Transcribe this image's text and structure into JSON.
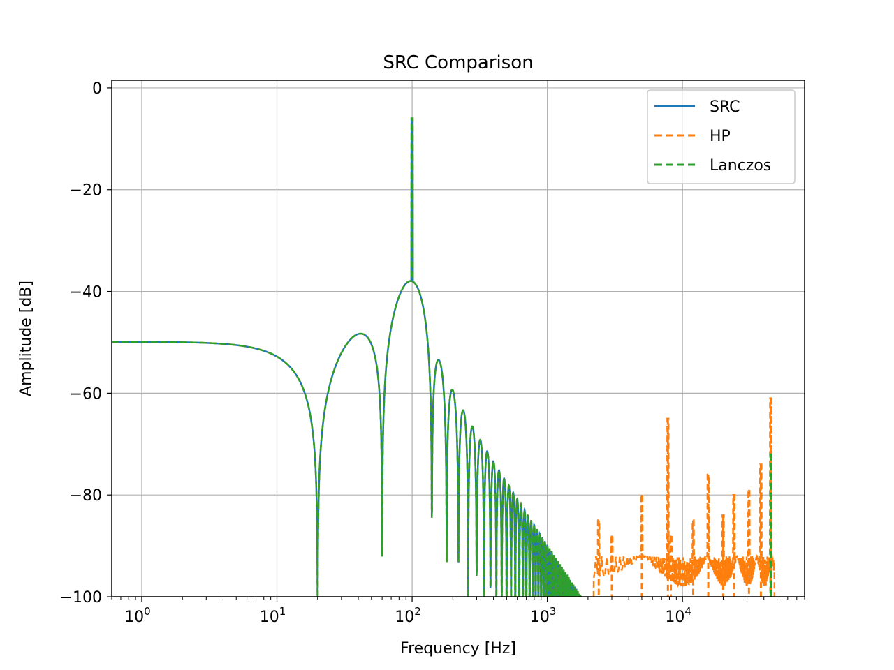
{
  "chart_data": {
    "type": "line",
    "title": "SRC Comparison",
    "xlabel": "Frequency [Hz]",
    "ylabel": "Amplitude [dB]",
    "xscale": "log",
    "xlim": [
      0.6,
      80000
    ],
    "ylim": [
      -100,
      1.5
    ],
    "x_ticks": [
      {
        "base": "10",
        "exp": "0"
      },
      {
        "base": "10",
        "exp": "1"
      },
      {
        "base": "10",
        "exp": "2"
      },
      {
        "base": "10",
        "exp": "3"
      },
      {
        "base": "10",
        "exp": "4"
      }
    ],
    "y_ticks": [
      "0",
      "−20",
      "−40",
      "−60",
      "−80",
      "−100"
    ],
    "y_tick_values": [
      0,
      -20,
      -40,
      -60,
      -80,
      -100
    ],
    "grid": true,
    "legend_position": "top-right",
    "series": [
      {
        "name": "SRC",
        "color": "#1f77b4",
        "style": "solid",
        "approx_envelope": [
          [
            0.6,
            -50
          ],
          [
            5,
            -50.5
          ],
          [
            10,
            -53
          ],
          [
            15,
            -60
          ],
          [
            20,
            -100
          ],
          [
            30,
            -52
          ],
          [
            42,
            -48.5
          ],
          [
            55,
            -55
          ],
          [
            60,
            -100
          ],
          [
            75,
            -43
          ],
          [
            100,
            -38
          ],
          [
            100,
            -6
          ],
          [
            130,
            -45
          ],
          [
            140,
            -100
          ],
          [
            160,
            -53
          ],
          [
            200,
            -59
          ],
          [
            300,
            -67
          ],
          [
            500,
            -75
          ],
          [
            1000,
            -85
          ],
          [
            1500,
            -92
          ],
          [
            2000,
            -100
          ]
        ]
      },
      {
        "name": "HP",
        "color": "#ff7f0e",
        "style": "dashed",
        "peaks": [
          [
            2400,
            -85
          ],
          [
            3000,
            -88
          ],
          [
            5000,
            -80
          ],
          [
            7800,
            -65
          ],
          [
            8200,
            -88
          ],
          [
            12000,
            -85
          ],
          [
            15500,
            -76
          ],
          [
            20000,
            -84
          ],
          [
            24000,
            -80
          ],
          [
            31000,
            -79
          ],
          [
            38000,
            -74
          ],
          [
            45000,
            -61
          ]
        ]
      },
      {
        "name": "Lanczos",
        "color": "#2ca02c",
        "style": "dashed",
        "peaks": [
          [
            45000,
            -72
          ]
        ]
      }
    ]
  }
}
